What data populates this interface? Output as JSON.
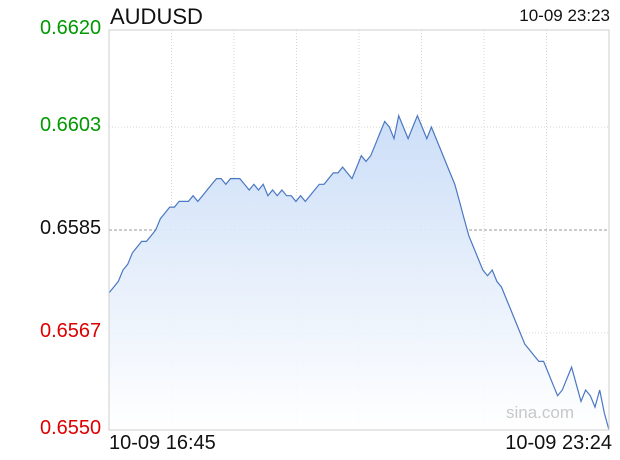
{
  "chart_data": {
    "type": "area",
    "title": "AUDUSD",
    "timestamp": "10-09 23:23",
    "xlabel": "",
    "ylabel": "",
    "x_tick_labels": [
      "10-09 16:45",
      "10-09 23:24"
    ],
    "y_ticks": [
      {
        "label": "0.6620",
        "value": 0.662,
        "color": "#009900"
      },
      {
        "label": "0.6603",
        "value": 0.6603,
        "color": "#009900"
      },
      {
        "label": "0.6585",
        "value": 0.6585,
        "color": "#111111"
      },
      {
        "label": "0.6567",
        "value": 0.6567,
        "color": "#dd0000"
      },
      {
        "label": "0.6550",
        "value": 0.655,
        "color": "#dd0000"
      }
    ],
    "ylim": [
      0.655,
      0.662
    ],
    "reference_value": 0.6585,
    "grid": true,
    "watermark": "sina.com",
    "line_color": "#4a78c2",
    "series": [
      {
        "values": [
          0.6574,
          0.6575,
          0.6576,
          0.6578,
          0.6579,
          0.6581,
          0.6582,
          0.6583,
          0.6583,
          0.6584,
          0.6585,
          0.6587,
          0.6588,
          0.6589,
          0.6589,
          0.659,
          0.659,
          0.659,
          0.6591,
          0.659,
          0.6591,
          0.6592,
          0.6593,
          0.6594,
          0.6594,
          0.6593,
          0.6594,
          0.6594,
          0.6594,
          0.6593,
          0.6592,
          0.6593,
          0.6592,
          0.6593,
          0.6591,
          0.6592,
          0.6591,
          0.6592,
          0.6591,
          0.6591,
          0.659,
          0.6591,
          0.659,
          0.6591,
          0.6592,
          0.6593,
          0.6593,
          0.6594,
          0.6595,
          0.6595,
          0.6596,
          0.6595,
          0.6594,
          0.6596,
          0.6598,
          0.6597,
          0.6598,
          0.66,
          0.6602,
          0.6604,
          0.6603,
          0.6601,
          0.6605,
          0.6603,
          0.6601,
          0.6603,
          0.6605,
          0.6603,
          0.6601,
          0.6603,
          0.6601,
          0.6599,
          0.6597,
          0.6595,
          0.6593,
          0.659,
          0.6587,
          0.6584,
          0.6582,
          0.658,
          0.6578,
          0.6577,
          0.6578,
          0.6576,
          0.6575,
          0.6573,
          0.6571,
          0.6569,
          0.6567,
          0.6565,
          0.6564,
          0.6563,
          0.6562,
          0.6562,
          0.656,
          0.6558,
          0.6556,
          0.6557,
          0.6559,
          0.6561,
          0.6558,
          0.6555,
          0.6557,
          0.6556,
          0.6554,
          0.6557,
          0.6553,
          0.655
        ]
      }
    ]
  }
}
